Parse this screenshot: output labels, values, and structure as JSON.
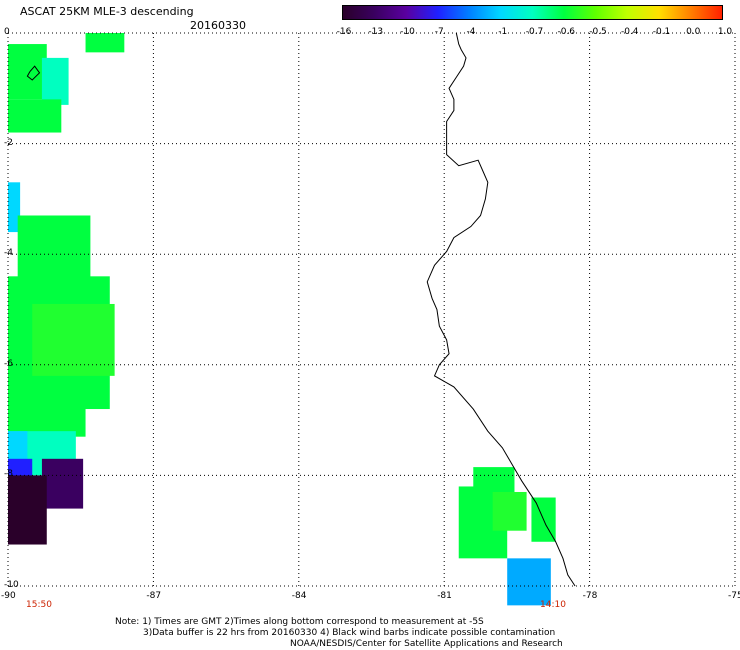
{
  "header": {
    "title": "ASCAT 25KM MLE-3 descending",
    "date": "20160330"
  },
  "colorbar": {
    "labels": [
      "-16",
      "-13",
      "-10",
      "-7",
      "-4",
      "-1",
      "-0.7",
      "-0.6",
      "-0.5",
      "-0.4",
      "-0.1",
      "0.0",
      "1.0"
    ],
    "colors": [
      "#2a002a",
      "#3a0060",
      "#5a00a0",
      "#2020ff",
      "#0080ff",
      "#00d8ff",
      "#00ffc0",
      "#00ff40",
      "#60ff00",
      "#c0ff00",
      "#ffe000",
      "#ff8000",
      "#ff2000"
    ]
  },
  "axes": {
    "x_ticks": [
      "-90",
      "-87",
      "-84",
      "-81",
      "-78",
      "-75"
    ],
    "y_ticks": [
      "0",
      "-2",
      "-4",
      "-6",
      "-8",
      "-10"
    ],
    "xlim": [
      -90,
      -75
    ],
    "ylim": [
      -10,
      0
    ]
  },
  "times": {
    "left": "15:50",
    "right": "14:10"
  },
  "notes": {
    "line1": "Note: 1) Times are GMT 2)Times along bottom correspond to measurement at -5S",
    "line2": "3)Data buffer is 22 hrs from 20160330 4) Black wind barbs indicate possible contamination",
    "line3": "NOAA/NESDIS/Center for Satellite Applications and Research"
  },
  "map_data": {
    "cells": [
      {
        "lon": -90.0,
        "lat": -0.2,
        "w": 0.8,
        "h": 1.0,
        "color": "#00ff40"
      },
      {
        "lon": -88.4,
        "lat": 0.0,
        "w": 0.8,
        "h": 0.35,
        "color": "#00ff40"
      },
      {
        "lon": -89.3,
        "lat": -0.45,
        "w": 0.55,
        "h": 0.85,
        "color": "#00ffc0"
      },
      {
        "lon": -90.0,
        "lat": -1.2,
        "w": 1.1,
        "h": 0.6,
        "color": "#00ff40"
      },
      {
        "lon": -90.0,
        "lat": -2.7,
        "w": 0.25,
        "h": 0.9,
        "color": "#00d8ff"
      },
      {
        "lon": -89.8,
        "lat": -3.3,
        "w": 1.5,
        "h": 1.3,
        "color": "#00ff40"
      },
      {
        "lon": -90.0,
        "lat": -4.4,
        "w": 2.1,
        "h": 2.4,
        "color": "#00ff40"
      },
      {
        "lon": -89.5,
        "lat": -4.9,
        "w": 1.7,
        "h": 1.3,
        "color": "#20ff30"
      },
      {
        "lon": -90.0,
        "lat": -6.5,
        "w": 1.6,
        "h": 0.8,
        "color": "#00ff40"
      },
      {
        "lon": -90.0,
        "lat": -7.2,
        "w": 1.4,
        "h": 0.8,
        "color": "#00ffc0"
      },
      {
        "lon": -90.0,
        "lat": -7.2,
        "w": 0.4,
        "h": 0.8,
        "color": "#00d8ff"
      },
      {
        "lon": -90.0,
        "lat": -7.7,
        "w": 0.5,
        "h": 0.6,
        "color": "#2020ff"
      },
      {
        "lon": -89.3,
        "lat": -7.7,
        "w": 0.85,
        "h": 0.9,
        "color": "#3a0060"
      },
      {
        "lon": -90.0,
        "lat": -8.0,
        "w": 0.8,
        "h": 1.25,
        "color": "#2a002a"
      },
      {
        "lon": -80.4,
        "lat": -7.85,
        "w": 0.85,
        "h": 0.95,
        "color": "#00ff40"
      },
      {
        "lon": -80.7,
        "lat": -8.2,
        "w": 1.0,
        "h": 1.3,
        "color": "#00ff40"
      },
      {
        "lon": -80.0,
        "lat": -8.3,
        "w": 0.7,
        "h": 0.7,
        "color": "#20ff30"
      },
      {
        "lon": -79.2,
        "lat": -8.4,
        "w": 0.5,
        "h": 0.8,
        "color": "#00ff40"
      },
      {
        "lon": -79.7,
        "lat": -9.5,
        "w": 0.9,
        "h": 0.85,
        "color": "#00aaff"
      }
    ],
    "coastline": [
      [
        -80.75,
        0.0
      ],
      [
        -80.7,
        -0.2
      ],
      [
        -80.65,
        -0.3
      ],
      [
        -80.55,
        -0.45
      ],
      [
        -80.6,
        -0.6
      ],
      [
        -80.75,
        -0.8
      ],
      [
        -80.9,
        -1.0
      ],
      [
        -80.85,
        -1.1
      ],
      [
        -80.8,
        -1.2
      ],
      [
        -80.8,
        -1.4
      ],
      [
        -80.95,
        -1.6
      ],
      [
        -80.95,
        -2.2
      ],
      [
        -80.7,
        -2.4
      ],
      [
        -80.3,
        -2.3
      ],
      [
        -80.2,
        -2.5
      ],
      [
        -80.1,
        -2.7
      ],
      [
        -80.15,
        -3.0
      ],
      [
        -80.25,
        -3.3
      ],
      [
        -80.45,
        -3.5
      ],
      [
        -80.8,
        -3.7
      ],
      [
        -80.95,
        -3.95
      ],
      [
        -81.2,
        -4.2
      ],
      [
        -81.35,
        -4.5
      ],
      [
        -81.25,
        -4.8
      ],
      [
        -81.15,
        -5.0
      ],
      [
        -81.1,
        -5.3
      ],
      [
        -80.95,
        -5.55
      ],
      [
        -80.9,
        -5.8
      ],
      [
        -81.1,
        -6.0
      ],
      [
        -81.2,
        -6.2
      ],
      [
        -80.8,
        -6.4
      ],
      [
        -80.4,
        -6.8
      ],
      [
        -80.1,
        -7.2
      ],
      [
        -79.8,
        -7.5
      ],
      [
        -79.6,
        -7.8
      ],
      [
        -79.4,
        -8.1
      ],
      [
        -79.1,
        -8.5
      ],
      [
        -78.9,
        -8.9
      ],
      [
        -78.7,
        -9.2
      ],
      [
        -78.55,
        -9.5
      ],
      [
        -78.45,
        -9.8
      ],
      [
        -78.3,
        -10.0
      ]
    ],
    "galapagos_island": [
      [
        -89.55,
        -0.7
      ],
      [
        -89.45,
        -0.6
      ],
      [
        -89.35,
        -0.72
      ],
      [
        -89.5,
        -0.85
      ],
      [
        -89.6,
        -0.78
      ],
      [
        -89.55,
        -0.7
      ]
    ]
  }
}
